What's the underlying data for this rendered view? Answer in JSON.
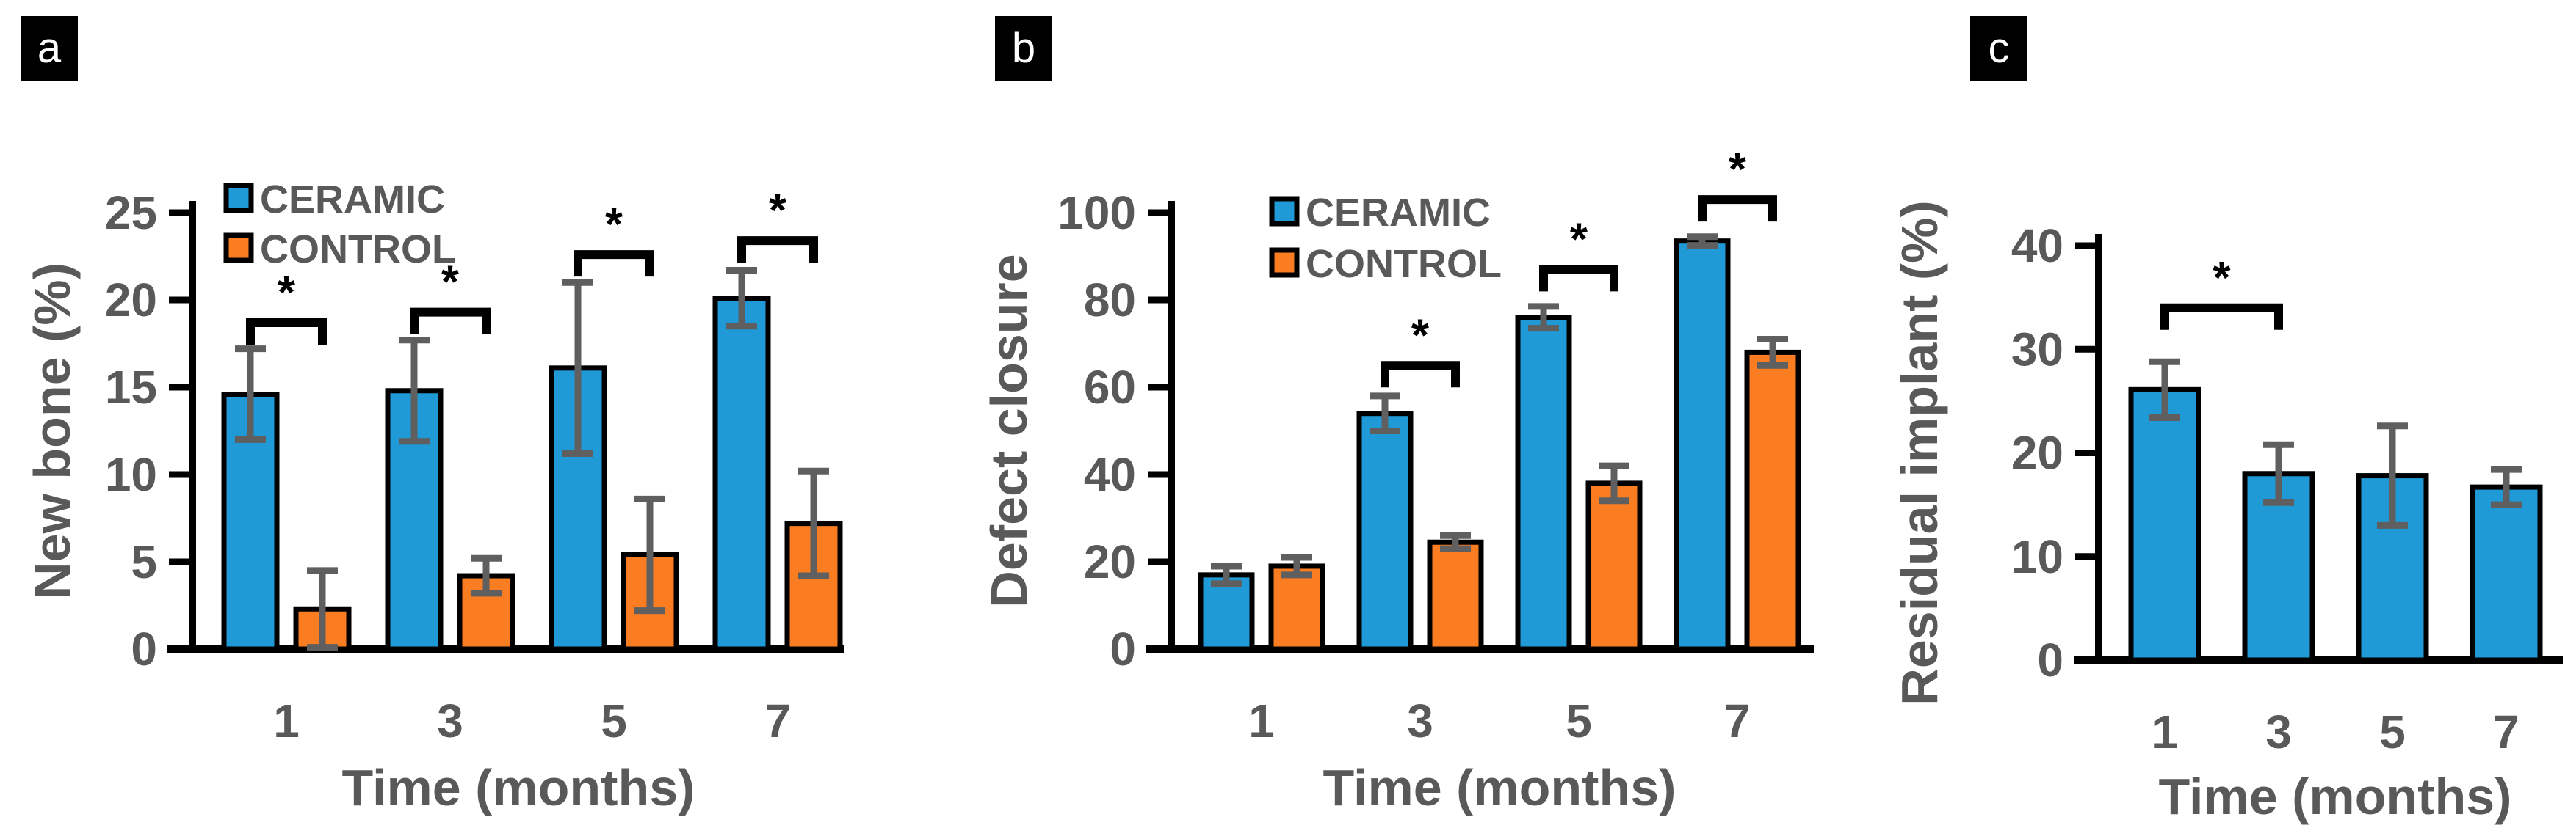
{
  "figure": {
    "background": "#ffffff",
    "colors": {
      "ceramic": "#1F9AD7",
      "control": "#FA7D21",
      "axis": "#000000",
      "tick_text": "#595959",
      "error_bar": "#5F5F5F",
      "bracket": "#000000",
      "panel_label_bg": "#000000",
      "panel_label_fg": "#ffffff"
    }
  },
  "chart_data": [
    {
      "panel": "a",
      "type": "bar",
      "title": "",
      "xlabel": "Time (months)",
      "ylabel": "New bone (%)",
      "categories": [
        "1",
        "3",
        "5",
        "7"
      ],
      "ylim": [
        0,
        25
      ],
      "yticks": [
        0,
        5,
        10,
        15,
        20,
        25
      ],
      "grid": false,
      "legend": [
        "CERAMIC",
        "CONTROL"
      ],
      "legend_position": "top-left-inside",
      "series": [
        {
          "name": "CERAMIC",
          "values": [
            14.6,
            14.8,
            16.1,
            20.1
          ],
          "error": [
            2.6,
            2.9,
            4.9,
            1.6
          ]
        },
        {
          "name": "CONTROL",
          "values": [
            2.3,
            4.2,
            5.4,
            7.2
          ],
          "error": [
            2.2,
            1.0,
            3.2,
            3.0
          ]
        }
      ],
      "significance": [
        {
          "group": 0,
          "label": "*",
          "y": 18.7
        },
        {
          "group": 1,
          "label": "*",
          "y": 19.3
        },
        {
          "group": 2,
          "label": "*",
          "y": 22.6
        },
        {
          "group": 3,
          "label": "*",
          "y": 23.4
        }
      ]
    },
    {
      "panel": "b",
      "type": "bar",
      "title": "",
      "xlabel": "Time (months)",
      "ylabel": "Defect closure",
      "categories": [
        "1",
        "3",
        "5",
        "7"
      ],
      "ylim": [
        0,
        100
      ],
      "yticks": [
        0,
        20,
        40,
        60,
        80,
        100
      ],
      "grid": false,
      "legend": [
        "CERAMIC",
        "CONTROL"
      ],
      "legend_position": "top-left-inside",
      "series": [
        {
          "name": "CERAMIC",
          "values": [
            17,
            54,
            76,
            93.5
          ],
          "error": [
            2,
            4,
            2.5,
            1
          ]
        },
        {
          "name": "CONTROL",
          "values": [
            19,
            24.5,
            38,
            68
          ],
          "error": [
            2,
            1.5,
            4,
            3
          ]
        }
      ],
      "significance": [
        {
          "group": 1,
          "label": "*",
          "y": 65
        },
        {
          "group": 2,
          "label": "*",
          "y": 87
        },
        {
          "group": 3,
          "label": "*",
          "y": 103
        }
      ]
    },
    {
      "panel": "c",
      "type": "bar",
      "title": "",
      "xlabel": "Time (months)",
      "ylabel": "Residual implant (%)",
      "categories": [
        "1",
        "3",
        "5",
        "7"
      ],
      "ylim": [
        0,
        40
      ],
      "yticks": [
        0,
        10,
        20,
        30,
        40
      ],
      "grid": false,
      "legend": [],
      "legend_position": "none",
      "series": [
        {
          "name": "CERAMIC",
          "values": [
            26.1,
            18.0,
            17.8,
            16.7
          ],
          "error": [
            2.7,
            2.8,
            4.8,
            1.7
          ]
        }
      ],
      "significance": [
        {
          "groups": [
            0,
            1
          ],
          "label": "*",
          "y": 34
        }
      ]
    }
  ]
}
